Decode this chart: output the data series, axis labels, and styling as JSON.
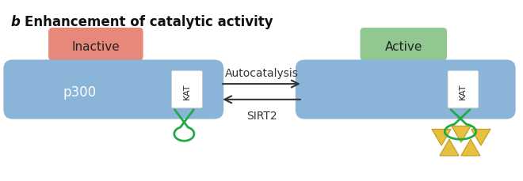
{
  "title_b": "b",
  "title_text": "Enhancement of catalytic activity",
  "inactive_label": "Inactive",
  "active_label": "Active",
  "inactive_bg": "#e8887a",
  "inactive_edge": "#d06050",
  "active_bg": "#90c890",
  "active_edge": "#60a860",
  "enzyme_color": "#8ab4d8",
  "enzyme_color2": "#a0c4e0",
  "p300_label": "p300",
  "kat_label": "KAT",
  "arrow_top_label": "Autocatalysis",
  "arrow_bottom_label": "SIRT2",
  "loop_color": "#22aa44",
  "acetyl_color": "#e8c040",
  "acetyl_edge": "#c09820",
  "bg_color": "#ffffff",
  "text_color": "#111111"
}
